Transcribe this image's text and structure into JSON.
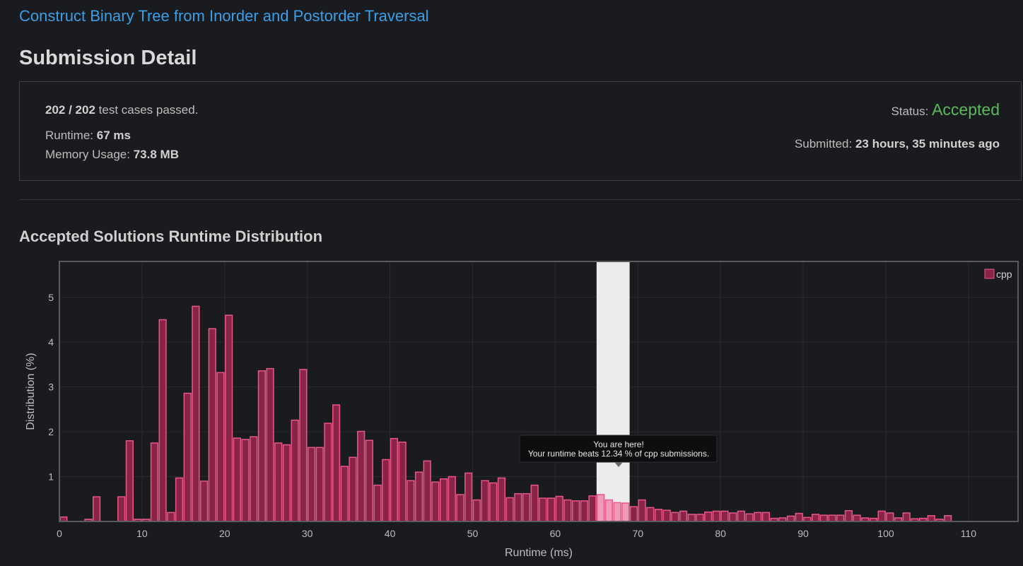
{
  "problem": {
    "title": "Construct Binary Tree from Inorder and Postorder Traversal"
  },
  "page": {
    "title": "Submission Detail"
  },
  "detail": {
    "passed": "202 / 202",
    "passed_suffix": "test cases passed.",
    "runtime_label": "Runtime:",
    "runtime_value": "67 ms",
    "memory_label": "Memory Usage:",
    "memory_value": "73.8 MB",
    "status_label": "Status:",
    "status_value": "Accepted",
    "submitted_label": "Submitted:",
    "submitted_value": "23 hours, 35 minutes ago"
  },
  "colors": {
    "accent_link": "#3a9ee8",
    "accepted": "#5cb85c",
    "bar_fill": "#8a2447",
    "bar_stroke": "#e8578a",
    "highlight": "#ececec"
  },
  "chart_data": {
    "type": "bar",
    "title": "Accepted Solutions Runtime Distribution",
    "xlabel": "Runtime (ms)",
    "ylabel": "Distribution (%)",
    "xlim": [
      0,
      116
    ],
    "ylim": [
      0,
      5.8
    ],
    "xticks": [
      0,
      10,
      20,
      30,
      40,
      50,
      60,
      70,
      80,
      90,
      100,
      110
    ],
    "yticks": [
      1,
      2,
      3,
      4,
      5
    ],
    "grid": true,
    "legend_position": "top-right",
    "series": [
      {
        "name": "cpp"
      }
    ],
    "highlight_range": [
      65,
      69
    ],
    "tooltip": {
      "line1": "You are here!",
      "line2": "Your runtime beats 12.34 % of cpp submissions."
    },
    "x": [
      0,
      3,
      4,
      7,
      8,
      9,
      10,
      11,
      12,
      13,
      14,
      15,
      16,
      17,
      18,
      19,
      20,
      21,
      22,
      23,
      24,
      25,
      26,
      27,
      28,
      29,
      30,
      31,
      32,
      33,
      34,
      35,
      36,
      37,
      38,
      39,
      40,
      41,
      42,
      43,
      44,
      45,
      46,
      47,
      48,
      49,
      50,
      51,
      52,
      53,
      54,
      55,
      56,
      57,
      58,
      59,
      60,
      61,
      62,
      63,
      64,
      65,
      66,
      67,
      68,
      69,
      70,
      71,
      72,
      73,
      74,
      75,
      76,
      77,
      78,
      79,
      80,
      81,
      82,
      83,
      84,
      85,
      86,
      87,
      88,
      89,
      90,
      91,
      92,
      93,
      94,
      95,
      96,
      97,
      98,
      99,
      100,
      101,
      102,
      103,
      104,
      105,
      106,
      107
    ],
    "values": [
      0.1,
      0.05,
      0.55,
      0.55,
      1.8,
      0.05,
      0.05,
      1.75,
      4.5,
      0.2,
      0.97,
      2.86,
      4.8,
      0.9,
      4.3,
      3.32,
      4.6,
      1.86,
      1.83,
      1.89,
      3.36,
      3.41,
      1.75,
      1.71,
      2.26,
      3.39,
      1.65,
      1.65,
      2.19,
      2.6,
      1.23,
      1.43,
      2.01,
      1.81,
      0.81,
      1.38,
      1.85,
      1.77,
      0.91,
      1.1,
      1.35,
      0.88,
      0.95,
      1.0,
      0.6,
      1.08,
      0.48,
      0.91,
      0.86,
      0.97,
      0.53,
      0.62,
      0.62,
      0.81,
      0.52,
      0.52,
      0.56,
      0.48,
      0.46,
      0.46,
      0.57,
      0.6,
      0.48,
      0.42,
      0.41,
      0.33,
      0.48,
      0.31,
      0.27,
      0.25,
      0.2,
      0.23,
      0.16,
      0.16,
      0.21,
      0.23,
      0.23,
      0.19,
      0.23,
      0.17,
      0.2,
      0.2,
      0.07,
      0.08,
      0.12,
      0.18,
      0.09,
      0.16,
      0.14,
      0.14,
      0.14,
      0.24,
      0.14,
      0.08,
      0.07,
      0.23,
      0.19,
      0.08,
      0.19,
      0.06,
      0.07,
      0.13,
      0.05,
      0.13
    ]
  }
}
